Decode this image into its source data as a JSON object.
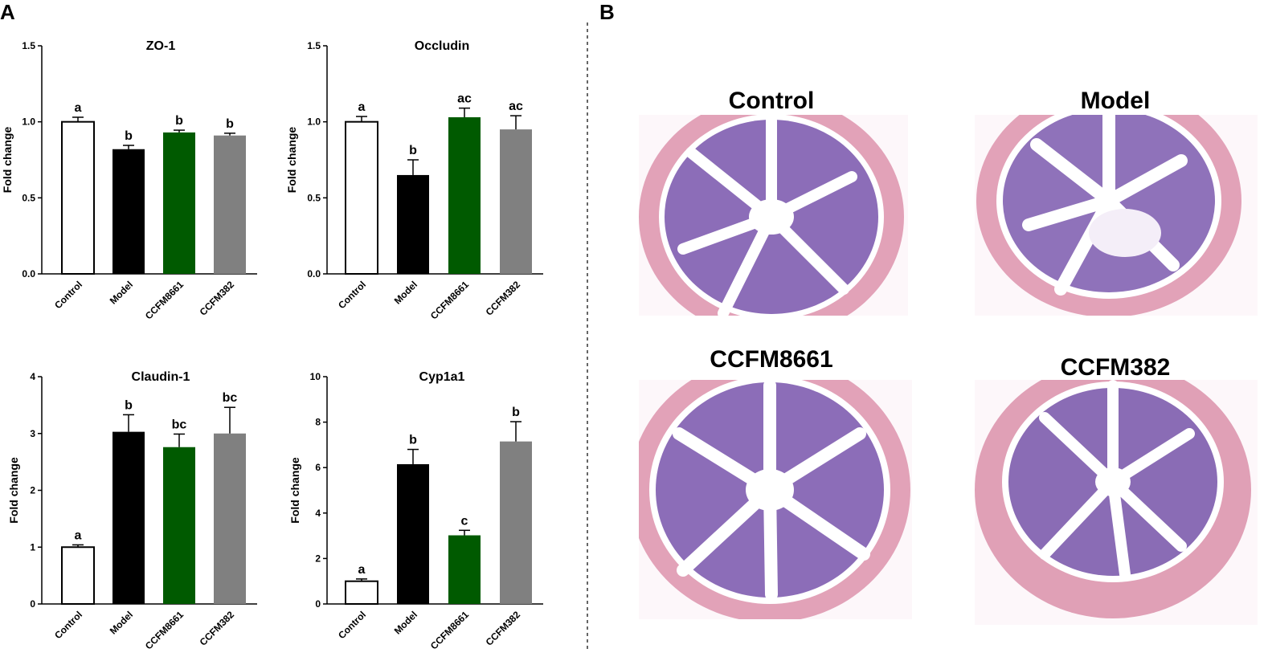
{
  "panels": {
    "a": "A",
    "b": "B"
  },
  "chart_data": [
    {
      "type": "bar",
      "title": "ZO-1",
      "ylabel": "Fold change",
      "ylim": [
        0,
        1.5
      ],
      "yticks": [
        "0.0",
        "0.5",
        "1.0",
        "1.5"
      ],
      "categories": [
        "Control",
        "Model",
        "CCFM8661",
        "CCFM382"
      ],
      "values": [
        1.0,
        0.82,
        0.93,
        0.91
      ],
      "errors": [
        0.03,
        0.025,
        0.015,
        0.015
      ],
      "letters": [
        "a",
        "b",
        "b",
        "b"
      ],
      "colors": [
        "#ffffff",
        "#000000",
        "#005a00",
        "#808080"
      ]
    },
    {
      "type": "bar",
      "title": "Occludin",
      "ylabel": "Fold change",
      "ylim": [
        0,
        1.5
      ],
      "yticks": [
        "0.0",
        "0.5",
        "1.0",
        "1.5"
      ],
      "categories": [
        "Control",
        "Model",
        "CCFM8661",
        "CCFM382"
      ],
      "values": [
        1.0,
        0.65,
        1.03,
        0.95
      ],
      "errors": [
        0.035,
        0.1,
        0.06,
        0.09
      ],
      "letters": [
        "a",
        "b",
        "ac",
        "ac"
      ],
      "colors": [
        "#ffffff",
        "#000000",
        "#005a00",
        "#808080"
      ]
    },
    {
      "type": "bar",
      "title": "Claudin-1",
      "ylabel": "Fold change",
      "ylim": [
        0,
        4
      ],
      "yticks": [
        "0",
        "1",
        "2",
        "3",
        "4"
      ],
      "categories": [
        "Control",
        "Model",
        "CCFM8661",
        "CCFM382"
      ],
      "values": [
        1.0,
        3.03,
        2.76,
        3.0
      ],
      "errors": [
        0.04,
        0.3,
        0.23,
        0.46
      ],
      "letters": [
        "a",
        "b",
        "bc",
        "bc"
      ],
      "colors": [
        "#ffffff",
        "#000000",
        "#005a00",
        "#808080"
      ]
    },
    {
      "type": "bar",
      "title": "Cyp1a1",
      "ylabel": "Fold change",
      "ylim": [
        0,
        10
      ],
      "yticks": [
        "0",
        "2",
        "4",
        "6",
        "8",
        "10"
      ],
      "categories": [
        "Control",
        "Model",
        "CCFM8661",
        "CCFM382"
      ],
      "values": [
        1.0,
        6.15,
        3.02,
        7.15
      ],
      "errors": [
        0.1,
        0.65,
        0.22,
        0.87
      ],
      "letters": [
        "a",
        "b",
        "c",
        "b"
      ],
      "colors": [
        "#ffffff",
        "#000000",
        "#005a00",
        "#808080"
      ]
    }
  ],
  "histology": {
    "labels": [
      "Control",
      "Model",
      "CCFM8661",
      "CCFM382"
    ],
    "colors": {
      "tissue_pink": "#e8a6bc",
      "tissue_purple": "#8a6cb5",
      "lumen": "#ffffff"
    }
  }
}
